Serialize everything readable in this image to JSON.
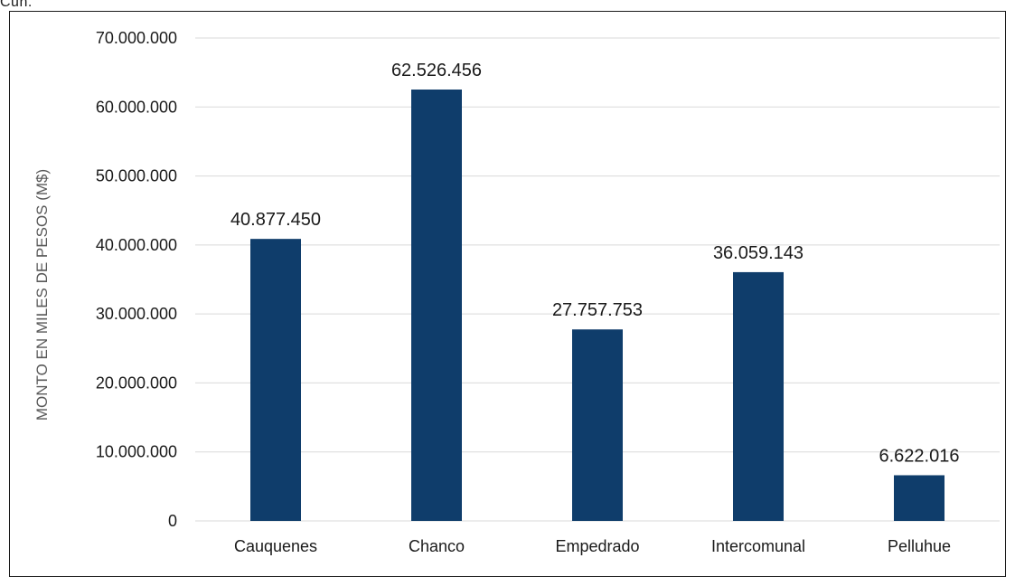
{
  "page": {
    "top_fragment": "Cuh."
  },
  "chart_data": {
    "type": "bar",
    "title": "",
    "xlabel": "",
    "ylabel": "MONTO EN MILES DE PESOS (M$)",
    "categories": [
      "Cauquenes",
      "Chanco",
      "Empedrado",
      "Intercomunal",
      "Pelluhue"
    ],
    "values": [
      40877450,
      62526456,
      27757753,
      36059143,
      6622016
    ],
    "data_labels": [
      "40.877.450",
      "62.526.456",
      "27.757.753",
      "36.059.143",
      "6.622.016"
    ],
    "ylim": [
      0,
      70000000
    ],
    "yticks": [
      0,
      10000000,
      20000000,
      30000000,
      40000000,
      50000000,
      60000000,
      70000000
    ],
    "ytick_labels": [
      "0",
      "10.000.000",
      "20.000.000",
      "30.000.000",
      "40.000.000",
      "50.000.000",
      "60.000.000",
      "70.000.000"
    ],
    "grid": true,
    "legend": "none",
    "colors": {
      "bar": "#0f3d6b",
      "grid": "#d9d9d9",
      "axis_text": "#1a1a1a",
      "ylabel_text": "#595959"
    }
  }
}
